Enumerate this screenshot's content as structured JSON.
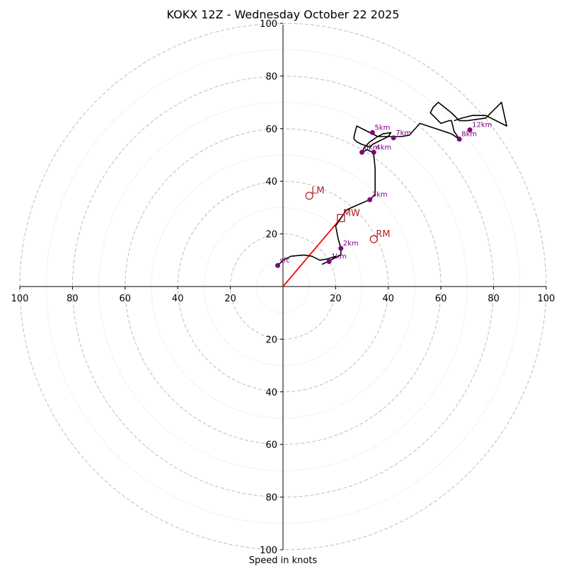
{
  "chart_data": {
    "type": "hodograph",
    "title": "KOKX 12Z - Wednesday October 22 2025",
    "xlabel": "Speed in knots",
    "range": 100,
    "ring_dashed": [
      20,
      40,
      60,
      80,
      100
    ],
    "ring_dotted": [
      10,
      30,
      50,
      70,
      90
    ],
    "tick_values": [
      20,
      40,
      60,
      80,
      100
    ],
    "tick_labels": {
      "x_neg": [
        "100",
        "80",
        "60",
        "40",
        "20"
      ],
      "x_pos": [
        "20",
        "40",
        "60",
        "80",
        "100"
      ],
      "y_pos": [
        "20",
        "40",
        "60",
        "80",
        "100"
      ],
      "y_neg": [
        "20",
        "40",
        "60",
        "80",
        "100"
      ]
    },
    "hodograph": [
      [
        -2,
        8
      ],
      [
        0,
        10
      ],
      [
        3,
        11.5
      ],
      [
        8,
        12
      ],
      [
        11,
        11.5
      ],
      [
        14,
        10
      ],
      [
        17,
        10.5
      ],
      [
        20,
        11.5
      ],
      [
        19,
        10.5
      ],
      [
        15,
        8.5
      ],
      [
        18,
        10
      ],
      [
        22,
        12
      ],
      [
        22,
        14.5
      ],
      [
        21,
        18
      ],
      [
        20,
        23
      ],
      [
        22,
        26
      ],
      [
        24,
        29
      ],
      [
        26,
        30
      ],
      [
        33,
        33
      ],
      [
        35,
        35
      ],
      [
        35,
        40
      ],
      [
        35,
        45
      ],
      [
        34.5,
        50
      ],
      [
        34,
        51
      ],
      [
        32,
        52
      ],
      [
        30,
        51
      ],
      [
        31,
        53
      ],
      [
        33,
        55
      ],
      [
        36,
        57
      ],
      [
        38,
        58
      ],
      [
        41,
        58.5
      ],
      [
        40,
        57
      ],
      [
        38,
        56
      ],
      [
        36,
        55
      ],
      [
        34,
        54
      ],
      [
        33,
        53
      ],
      [
        30,
        54
      ],
      [
        28,
        55
      ],
      [
        27,
        56
      ],
      [
        27,
        57
      ],
      [
        27.5,
        59
      ],
      [
        28,
        61
      ],
      [
        32,
        59
      ],
      [
        36,
        57
      ],
      [
        40,
        57
      ],
      [
        45,
        57
      ],
      [
        48,
        57.5
      ],
      [
        52,
        62
      ],
      [
        58,
        60
      ],
      [
        64,
        58
      ],
      [
        67,
        56
      ],
      [
        65,
        59
      ],
      [
        64,
        63
      ],
      [
        63,
        63
      ],
      [
        60,
        62
      ],
      [
        58,
        64
      ],
      [
        56,
        66
      ],
      [
        57,
        68
      ],
      [
        59,
        70
      ],
      [
        64,
        66
      ],
      [
        67,
        63
      ],
      [
        70,
        63
      ],
      [
        77,
        64
      ],
      [
        83,
        70
      ],
      [
        85,
        61
      ],
      [
        77,
        65
      ],
      [
        72,
        65
      ],
      [
        68,
        64
      ],
      [
        65,
        63
      ]
    ],
    "height_markers": [
      {
        "label": "sfc",
        "u": -2,
        "v": 8
      },
      {
        "label": "1km",
        "u": 17.5,
        "v": 9.5
      },
      {
        "label": "2km",
        "u": 22,
        "v": 14.5
      },
      {
        "label": "3km",
        "u": 33,
        "v": 33
      },
      {
        "label": "4km",
        "u": 34.5,
        "v": 51
      },
      {
        "label": "6km",
        "u": 30,
        "v": 51
      },
      {
        "label": "5km",
        "u": 34,
        "v": 58.5
      },
      {
        "label": "7km",
        "u": 42,
        "v": 56.5
      },
      {
        "label": "8km",
        "u": 67,
        "v": 56
      },
      {
        "label": "12km",
        "u": 71,
        "v": 59.5
      }
    ],
    "storm_motion": [
      {
        "label": "LM",
        "u": 10,
        "v": 34.5,
        "marker": "circle"
      },
      {
        "label": "MW",
        "u": 22,
        "v": 26,
        "marker": "square"
      },
      {
        "label": "RM",
        "u": 34.5,
        "v": 18,
        "marker": "circle"
      }
    ],
    "shear_vector": {
      "u0": 0,
      "v0": 0,
      "u1": 22,
      "v1": 26
    },
    "colors": {
      "hodograph": "#000000",
      "markers": "#800080",
      "storm": "#b22222",
      "shear": "#ff0000",
      "grid": "#bdbdbd"
    }
  }
}
